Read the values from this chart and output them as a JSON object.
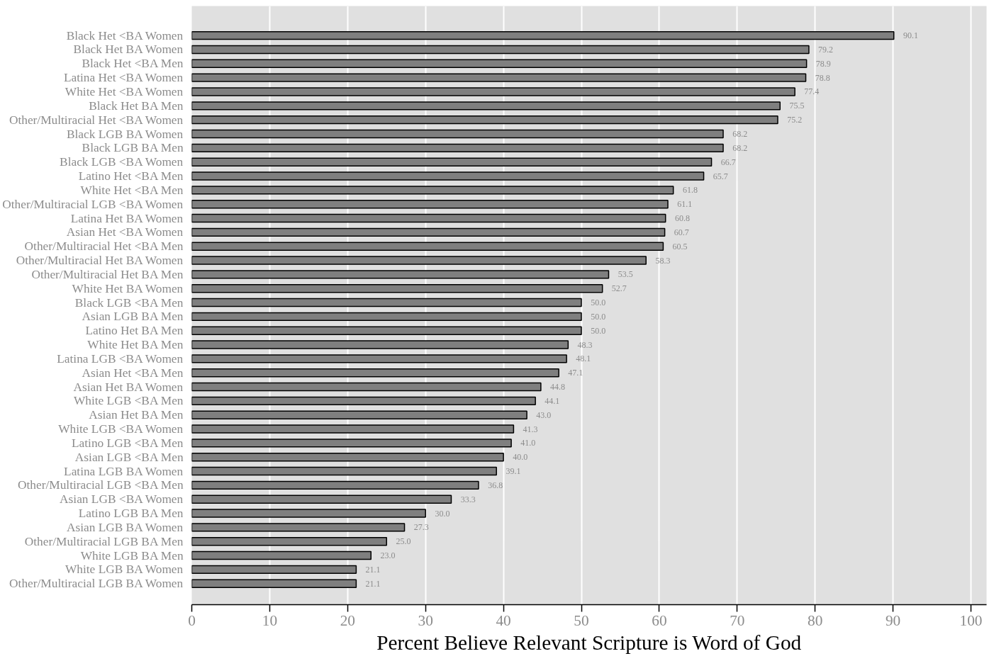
{
  "chart_data": {
    "type": "bar",
    "orientation": "horizontal",
    "xlabel": "Percent Believe Relevant Scripture is Word of God",
    "categories": [
      "Black Het <BA Women",
      "Black Het BA Women",
      "Black Het <BA Men",
      "Latina Het <BA Women",
      "White Het <BA Women",
      "Black Het BA Men",
      "Other/Multiracial Het <BA Women",
      "Black LGB BA Women",
      "Black LGB BA Men",
      "Black LGB <BA Women",
      "Latino Het <BA Men",
      "White Het <BA Men",
      "Other/Multiracial LGB <BA Women",
      "Latina Het BA Women",
      "Asian Het <BA Women",
      "Other/Multiracial Het <BA Men",
      "Other/Multiracial Het BA Women",
      "Other/Multiracial Het BA Men",
      "White Het BA Women",
      "Black LGB <BA Men",
      "Asian LGB BA Men",
      "Latino Het BA Men",
      "White Het BA Men",
      "Latina LGB <BA Women",
      "Asian Het <BA Men",
      "Asian Het BA Women",
      "White LGB <BA Men",
      "Asian Het BA Men",
      "White LGB <BA Women",
      "Latino LGB <BA Men",
      "Asian LGB <BA Men",
      "Latina LGB BA Women",
      "Other/Multiracial LGB <BA Men",
      "Asian LGB <BA Women",
      "Latino LGB BA Men",
      "Asian LGB BA Women",
      "Other/Multiracial LGB BA Men",
      "White LGB BA Men",
      "White LGB BA Women",
      "Other/Multiracial LGB BA Women"
    ],
    "values": [
      90.1,
      79.2,
      78.9,
      78.8,
      77.4,
      75.5,
      75.2,
      68.2,
      68.2,
      66.7,
      65.7,
      61.8,
      61.1,
      60.8,
      60.7,
      60.5,
      58.3,
      53.5,
      52.7,
      50.0,
      50.0,
      50.0,
      48.3,
      48.1,
      47.1,
      44.8,
      44.1,
      43.0,
      41.3,
      41.0,
      40.0,
      39.1,
      36.8,
      33.3,
      30.0,
      27.3,
      25.0,
      23.0,
      21.1,
      21.1
    ],
    "value_labels": [
      "90.1",
      "79.2",
      "78.9",
      "78.8",
      "77.4",
      "75.5",
      "75.2",
      "68.2",
      "68.2",
      "66.7",
      "65.7",
      "61.8",
      "61.1",
      "60.8",
      "60.7",
      "60.5",
      "58.3",
      "53.5",
      "52.7",
      "50.0",
      "50.0",
      "50.0",
      "48.3",
      "48.1",
      "47.1",
      "44.8",
      "44.1",
      "43.0",
      "41.3",
      "41.0",
      "40.0",
      "39.1",
      "36.8",
      "33.3",
      "30.0",
      "27.3",
      "25.0",
      "23.0",
      "21.1",
      "21.1"
    ],
    "color": "#7f7f7f",
    "xlim": [
      0,
      102
    ],
    "xticks": [
      0,
      10,
      20,
      30,
      40,
      50,
      60,
      70,
      80,
      90,
      100
    ],
    "grid": "x"
  }
}
